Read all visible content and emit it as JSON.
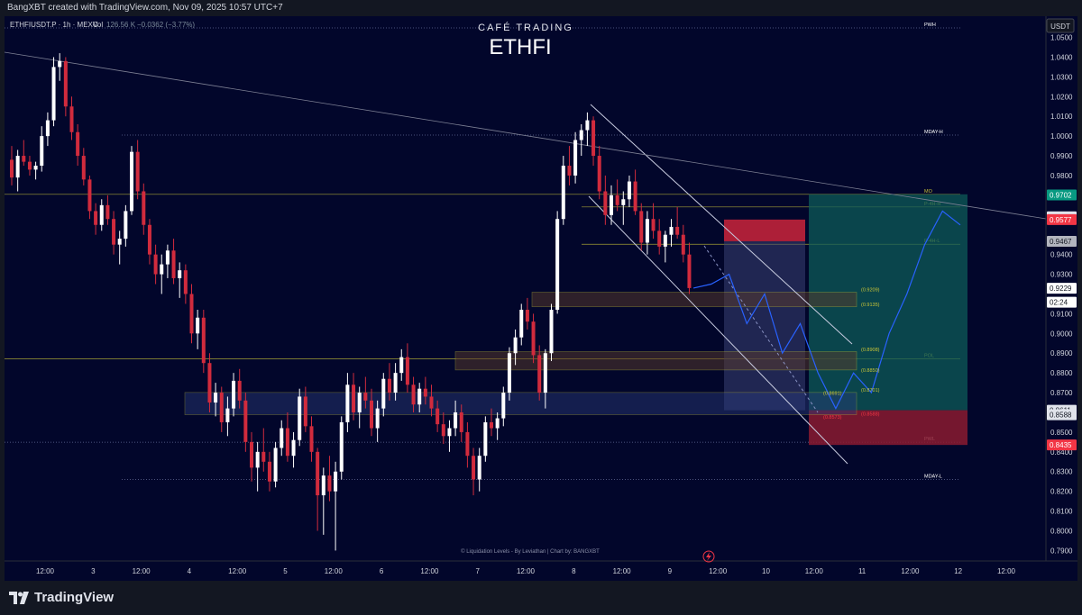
{
  "header": {
    "credit": "BangXBT created with TradingView.com, Nov 09, 2025 10:57 UTC+7",
    "symbol_info": "ETHFIUSDT.P · 1h · MEXC",
    "vol_label": "Vol",
    "vol_value": "126.56 K",
    "change": "−0.0362 (−3.77%)"
  },
  "watermark": {
    "brand": "CAFÉ TRADING",
    "ticker": "ETHFI"
  },
  "currency_badge": "USDT",
  "footer_note": "© Liquidation Levels - By Leviathan | Chart by: BANGXBT",
  "brand": {
    "name": "TradingView"
  },
  "colors": {
    "background": "#02062b",
    "bull": "#ffffff",
    "bear": "#d12b3d",
    "level_line": "#7c86b5",
    "fib_yellow": "#c9c437",
    "projection": "#2962ff",
    "tp_zone": "#0e5b58",
    "sl_zone": "#8a1b30"
  },
  "chart_data": {
    "type": "candlestick",
    "y_range": [
      0.787,
      1.058
    ],
    "x_ticks": [
      "12:00",
      "3",
      "12:00",
      "4",
      "12:00",
      "5",
      "12:00",
      "6",
      "12:00",
      "7",
      "12:00",
      "8",
      "12:00",
      "9",
      "12:00",
      "10",
      "12:00",
      "11",
      "12:00",
      "12",
      "12:00"
    ],
    "y_ticks": [
      "1.0500",
      "1.0400",
      "1.0300",
      "1.0200",
      "1.0100",
      "1.0000",
      "0.9900",
      "0.9800",
      "0.9600",
      "0.9400",
      "0.9300",
      "0.9100",
      "0.9000",
      "0.8900",
      "0.8800",
      "0.8700",
      "0.8500",
      "0.8400",
      "0.8300",
      "0.8200",
      "0.8100",
      "0.8000",
      "0.7900"
    ],
    "price_tags": [
      {
        "value": "0.9702",
        "price": 0.9702,
        "color": "#089981",
        "text_color": "#ffffff"
      },
      {
        "value": "0.9591",
        "price": 0.9591,
        "color": "#e0e3eb",
        "text_color": "#131722"
      },
      {
        "value": "0.9577",
        "price": 0.9577,
        "color": "#f23645",
        "text_color": "#ffffff"
      },
      {
        "value": "0.9467",
        "price": 0.9467,
        "color": "#b2b5be",
        "text_color": "#131722"
      },
      {
        "value": "0.9229",
        "price": 0.9229,
        "color": "#ffffff",
        "text_color": "#131722"
      },
      {
        "value": "02:24",
        "price": 0.9158,
        "color": "#ffffff",
        "text_color": "#131722"
      },
      {
        "value": "0.8611",
        "price": 0.8611,
        "color": "#e0e3eb",
        "text_color": "#131722"
      },
      {
        "value": "0.8588",
        "price": 0.8588,
        "color": "#e0e3eb",
        "text_color": "#131722"
      },
      {
        "value": "0.8435",
        "price": 0.8435,
        "color": "#f23645",
        "text_color": "#ffffff"
      }
    ],
    "levels": [
      {
        "label": "PWH",
        "price": 1.0548
      },
      {
        "label": "MDAY-H",
        "price": 1.0005
      },
      {
        "label": "MO",
        "price": 0.9705
      },
      {
        "label": "P-4H-H",
        "price": 0.9641
      },
      {
        "label": "P-4H-L",
        "price": 0.9452
      },
      {
        "label": "POL",
        "price": 0.8872
      },
      {
        "label": "PWL",
        "price": 0.8449
      },
      {
        "label": "MDAY-L",
        "price": 0.826
      }
    ],
    "zone_labels": [
      {
        "label": "(0.9209)",
        "price": 0.9222
      },
      {
        "label": "(0.9135)",
        "price": 0.9148
      },
      {
        "label": "(0.8908)",
        "price": 0.892
      },
      {
        "label": "(0.8850)",
        "price": 0.8815
      },
      {
        "label": "(0.8701)",
        "price": 0.8714
      },
      {
        "label": "(0.8691)",
        "price": 0.8697
      },
      {
        "label": "(0.8588)",
        "price": 0.8593
      },
      {
        "label": "(0.8573)",
        "price": 0.8577
      }
    ],
    "ohlc": [
      [
        0.988,
        0.995,
        0.975,
        0.979
      ],
      [
        0.979,
        0.993,
        0.972,
        0.99
      ],
      [
        0.99,
        0.998,
        0.985,
        0.987
      ],
      [
        0.987,
        0.99,
        0.98,
        0.983
      ],
      [
        0.983,
        0.987,
        0.978,
        0.985
      ],
      [
        0.985,
        1.005,
        0.982,
        1.0
      ],
      [
        1.0,
        1.012,
        0.995,
        1.008
      ],
      [
        1.008,
        1.04,
        1.005,
        1.035
      ],
      [
        1.035,
        1.042,
        1.028,
        1.038
      ],
      [
        1.038,
        1.04,
        1.01,
        1.015
      ],
      [
        1.015,
        1.02,
        0.998,
        1.002
      ],
      [
        1.002,
        1.006,
        0.985,
        0.99
      ],
      [
        0.99,
        0.994,
        0.975,
        0.978
      ],
      [
        0.978,
        0.98,
        0.958,
        0.962
      ],
      [
        0.962,
        0.966,
        0.95,
        0.955
      ],
      [
        0.955,
        0.968,
        0.952,
        0.965
      ],
      [
        0.965,
        0.97,
        0.955,
        0.958
      ],
      [
        0.958,
        0.962,
        0.94,
        0.945
      ],
      [
        0.945,
        0.952,
        0.935,
        0.948
      ],
      [
        0.948,
        0.965,
        0.944,
        0.962
      ],
      [
        0.962,
        0.995,
        0.96,
        0.992
      ],
      [
        0.992,
        0.998,
        0.968,
        0.972
      ],
      [
        0.972,
        0.976,
        0.95,
        0.955
      ],
      [
        0.955,
        0.958,
        0.935,
        0.94
      ],
      [
        0.94,
        0.945,
        0.925,
        0.93
      ],
      [
        0.93,
        0.94,
        0.92,
        0.935
      ],
      [
        0.935,
        0.945,
        0.928,
        0.942
      ],
      [
        0.942,
        0.948,
        0.925,
        0.928
      ],
      [
        0.928,
        0.936,
        0.918,
        0.932
      ],
      [
        0.932,
        0.935,
        0.915,
        0.92
      ],
      [
        0.92,
        0.925,
        0.895,
        0.9
      ],
      [
        0.9,
        0.912,
        0.892,
        0.908
      ],
      [
        0.908,
        0.912,
        0.88,
        0.885
      ],
      [
        0.885,
        0.89,
        0.86,
        0.865
      ],
      [
        0.865,
        0.875,
        0.858,
        0.87
      ],
      [
        0.87,
        0.873,
        0.85,
        0.855
      ],
      [
        0.855,
        0.868,
        0.848,
        0.862
      ],
      [
        0.862,
        0.88,
        0.858,
        0.876
      ],
      [
        0.876,
        0.882,
        0.862,
        0.866
      ],
      [
        0.866,
        0.87,
        0.84,
        0.845
      ],
      [
        0.845,
        0.85,
        0.825,
        0.832
      ],
      [
        0.832,
        0.845,
        0.82,
        0.84
      ],
      [
        0.84,
        0.852,
        0.83,
        0.835
      ],
      [
        0.835,
        0.84,
        0.82,
        0.825
      ],
      [
        0.825,
        0.845,
        0.822,
        0.842
      ],
      [
        0.842,
        0.856,
        0.838,
        0.852
      ],
      [
        0.852,
        0.86,
        0.835,
        0.838
      ],
      [
        0.838,
        0.85,
        0.832,
        0.846
      ],
      [
        0.846,
        0.872,
        0.843,
        0.868
      ],
      [
        0.868,
        0.873,
        0.85,
        0.853
      ],
      [
        0.853,
        0.858,
        0.835,
        0.84
      ],
      [
        0.84,
        0.842,
        0.8,
        0.818
      ],
      [
        0.818,
        0.832,
        0.798,
        0.828
      ],
      [
        0.828,
        0.838,
        0.815,
        0.82
      ],
      [
        0.82,
        0.835,
        0.79,
        0.83
      ],
      [
        0.83,
        0.858,
        0.826,
        0.855
      ],
      [
        0.855,
        0.88,
        0.85,
        0.874
      ],
      [
        0.874,
        0.88,
        0.856,
        0.86
      ],
      [
        0.86,
        0.873,
        0.852,
        0.87
      ],
      [
        0.87,
        0.878,
        0.862,
        0.866
      ],
      [
        0.866,
        0.872,
        0.848,
        0.852
      ],
      [
        0.852,
        0.866,
        0.845,
        0.862
      ],
      [
        0.862,
        0.88,
        0.858,
        0.877
      ],
      [
        0.877,
        0.885,
        0.866,
        0.87
      ],
      [
        0.87,
        0.885,
        0.866,
        0.88
      ],
      [
        0.88,
        0.892,
        0.876,
        0.888
      ],
      [
        0.888,
        0.895,
        0.87,
        0.874
      ],
      [
        0.874,
        0.878,
        0.86,
        0.864
      ],
      [
        0.864,
        0.875,
        0.86,
        0.872
      ],
      [
        0.872,
        0.878,
        0.864,
        0.868
      ],
      [
        0.868,
        0.874,
        0.858,
        0.862
      ],
      [
        0.862,
        0.866,
        0.85,
        0.854
      ],
      [
        0.854,
        0.86,
        0.844,
        0.848
      ],
      [
        0.848,
        0.856,
        0.84,
        0.852
      ],
      [
        0.852,
        0.866,
        0.848,
        0.86
      ],
      [
        0.86,
        0.864,
        0.845,
        0.85
      ],
      [
        0.85,
        0.855,
        0.832,
        0.838
      ],
      [
        0.838,
        0.842,
        0.818,
        0.826
      ],
      [
        0.826,
        0.842,
        0.82,
        0.838
      ],
      [
        0.838,
        0.858,
        0.835,
        0.855
      ],
      [
        0.855,
        0.862,
        0.848,
        0.852
      ],
      [
        0.852,
        0.86,
        0.846,
        0.857
      ],
      [
        0.857,
        0.873,
        0.853,
        0.87
      ],
      [
        0.87,
        0.893,
        0.866,
        0.89
      ],
      [
        0.89,
        0.902,
        0.884,
        0.898
      ],
      [
        0.898,
        0.915,
        0.894,
        0.912
      ],
      [
        0.912,
        0.918,
        0.902,
        0.906
      ],
      [
        0.906,
        0.91,
        0.885,
        0.889
      ],
      [
        0.889,
        0.894,
        0.866,
        0.87
      ],
      [
        0.87,
        0.892,
        0.862,
        0.89
      ],
      [
        0.89,
        0.915,
        0.886,
        0.912
      ],
      [
        0.912,
        0.962,
        0.91,
        0.958
      ],
      [
        0.958,
        0.99,
        0.955,
        0.985
      ],
      [
        0.985,
        0.995,
        0.975,
        0.98
      ],
      [
        0.98,
        1.002,
        0.976,
        0.998
      ],
      [
        0.998,
        1.006,
        0.99,
        1.003
      ],
      [
        1.003,
        1.012,
        0.995,
        1.008
      ],
      [
        1.008,
        1.01,
        0.985,
        0.99
      ],
      [
        0.99,
        0.995,
        0.968,
        0.972
      ],
      [
        0.972,
        0.98,
        0.955,
        0.96
      ],
      [
        0.96,
        0.975,
        0.955,
        0.97
      ],
      [
        0.97,
        0.978,
        0.962,
        0.965
      ],
      [
        0.965,
        0.972,
        0.955,
        0.968
      ],
      [
        0.968,
        0.98,
        0.964,
        0.977
      ],
      [
        0.977,
        0.983,
        0.96,
        0.962
      ],
      [
        0.962,
        0.966,
        0.942,
        0.946
      ],
      [
        0.946,
        0.962,
        0.94,
        0.958
      ],
      [
        0.958,
        0.966,
        0.948,
        0.952
      ],
      [
        0.952,
        0.958,
        0.94,
        0.944
      ],
      [
        0.944,
        0.952,
        0.936,
        0.95
      ],
      [
        0.95,
        0.958,
        0.944,
        0.954
      ],
      [
        0.954,
        0.964,
        0.948,
        0.95
      ],
      [
        0.95,
        0.955,
        0.936,
        0.94
      ],
      [
        0.94,
        0.946,
        0.92,
        0.923
      ]
    ],
    "projection": [
      [
        0.923,
        0.925
      ],
      [
        0.925,
        0.93
      ],
      [
        0.93,
        0.905
      ],
      [
        0.905,
        0.92
      ],
      [
        0.92,
        0.89
      ],
      [
        0.89,
        0.905
      ],
      [
        0.905,
        0.88
      ],
      [
        0.88,
        0.862
      ],
      [
        0.862,
        0.88
      ],
      [
        0.88,
        0.87
      ],
      [
        0.87,
        0.9
      ],
      [
        0.9,
        0.92
      ],
      [
        0.92,
        0.945
      ],
      [
        0.945,
        0.962
      ],
      [
        0.962,
        0.955
      ]
    ]
  }
}
